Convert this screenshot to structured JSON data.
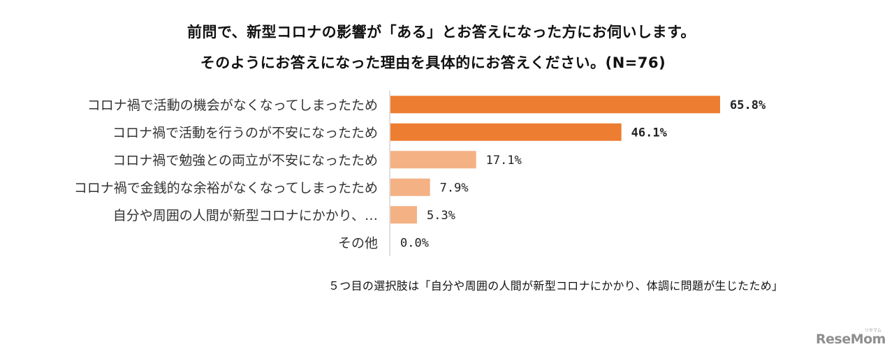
{
  "title_line1": "前問で、新型コロナの影響が「ある」とお答えになった方にお伺いします。",
  "title_line2": "そのようにお答えになった理由を具体的にお答えください。(N=76)",
  "note": "５つ目の選択肢は「自分や周囲の人間が新型コロナにかかり、体調に問題が生じたため」",
  "logo": "ReseMom",
  "logo_ruby": "リセマム",
  "colors": {
    "top_bars": "#ED7D31",
    "other_bars": "#F4B183",
    "axis": "#bfbfbf"
  },
  "chart_data": {
    "type": "bar",
    "orientation": "horizontal",
    "title": "前問で、新型コロナの影響が「ある」とお答えになった方にお伺いします。そのようにお答えになった理由を具体的にお答えください。(N=76)",
    "categories": [
      "コロナ禍で活動の機会がなくなってしまったため",
      "コロナ禍で活動を行うのが不安になったため",
      "コロナ禍で勉強との両立が不安になったため",
      "コロナ禍で金銭的な余裕がなくなってしまったため",
      "自分や周囲の人間が新型コロナにかかり、…",
      "その他"
    ],
    "values": [
      65.8,
      46.1,
      17.1,
      7.9,
      5.3,
      0.0
    ],
    "value_labels": [
      "65.8%",
      "46.1%",
      "17.1%",
      "7.9%",
      "5.3%",
      "0.0%"
    ],
    "unit": "%",
    "xlim": [
      0,
      75
    ],
    "highlight_top": 2,
    "grid": false,
    "legend": "none"
  }
}
